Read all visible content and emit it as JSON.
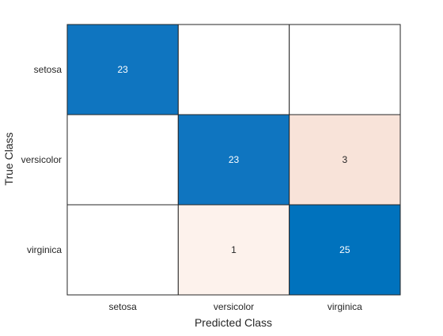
{
  "chart_data": {
    "type": "heatmap",
    "title": "",
    "xlabel": "Predicted Class",
    "ylabel": "True Class",
    "x_categories": [
      "setosa",
      "versicolor",
      "virginica"
    ],
    "y_categories": [
      "setosa",
      "versicolor",
      "virginica"
    ],
    "values": [
      [
        23,
        null,
        null
      ],
      [
        null,
        23,
        3
      ],
      [
        null,
        1,
        25
      ]
    ],
    "colors": {
      "diagonal_high": "#0072BD",
      "diagonal_mid": "#0F75C0",
      "off_diagonal_3": "#F8E3D9",
      "off_diagonal_1": "#FDF2EC",
      "empty": "#FFFFFF",
      "grid": "#262626",
      "text_on_dark": "#FFFFFF",
      "text_on_light": "#262626"
    },
    "grid": true,
    "legend": "none"
  }
}
